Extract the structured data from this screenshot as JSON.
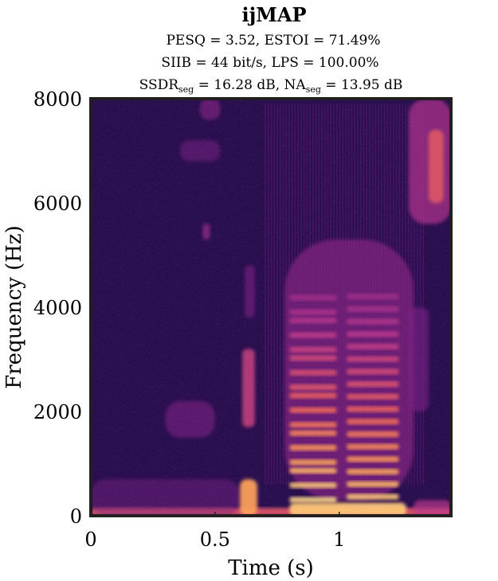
{
  "chart_data": {
    "type": "heatmap",
    "title": "ijMAP",
    "subtitle_lines": [
      "PESQ = 3.52, ESTOI = 71.49%",
      "SIIB = 44 bit/s, LPS = 100.00%",
      "SSDR_seg = 16.28 dB, NA_seg = 13.95 dB"
    ],
    "metrics": {
      "PESQ": "3.52",
      "ESTOI": "71.49%",
      "SIIB": "44 bit/s",
      "LPS": "100.00%",
      "SSDR_seg": "16.28 dB",
      "NA_seg": "13.95 dB"
    },
    "xlabel": "Time (s)",
    "ylabel": "Frequency (Hz)",
    "xlim": [
      0,
      1.45
    ],
    "ylim": [
      0,
      8000
    ],
    "xticks": [
      0,
      0.5,
      1
    ],
    "xtick_labels": [
      "0",
      "0.5",
      "1"
    ],
    "yticks": [
      0,
      2000,
      4000,
      6000,
      8000
    ],
    "ytick_labels": [
      "0",
      "2000",
      "4000",
      "6000",
      "8000"
    ],
    "colormap": "magma",
    "colors": {
      "background": "#2a0f4f",
      "frame": "#231f20"
    },
    "grid": false,
    "legend": "none"
  }
}
